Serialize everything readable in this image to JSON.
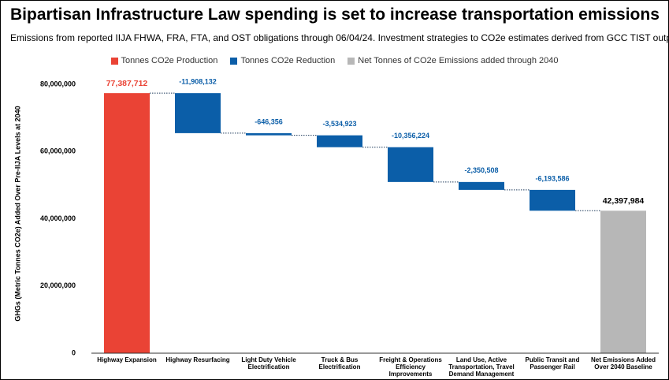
{
  "chart_data": {
    "type": "waterfall",
    "title": "Bipartisan Infrastructure Law spending is set to increase transportation emissions",
    "subtitle": "Emissions from reported IIJA FHWA, FRA, FTA, and OST obligations through 06/04/24. Investment strategies to CO2e estimates derived from GCC TIST output figures.",
    "y_label": "GHGs (Metric Tonnes CO2e) Added Over Pre-IIJA Levels at 2040",
    "categories": [
      "Highway Expansion",
      "Highway Resurfacing",
      "Light Duty Vehicle Electrification",
      "Truck & Bus Electrification",
      "Freight & Operations Efficiency Improvements",
      "Land Use, Active Transportation, Travel Demand Management",
      "Public Transit and Passenger Rail",
      "Net Emissions Added Over 2040 Baseline"
    ],
    "series": [
      {
        "name": "Tonnes CO2e Production",
        "color": "#ea4335",
        "values": [
          77387712,
          null,
          null,
          null,
          null,
          null,
          null,
          null
        ],
        "value_labels": [
          "77,387,712",
          null,
          null,
          null,
          null,
          null,
          null,
          null
        ]
      },
      {
        "name": "Tonnes CO2e Reduction",
        "color": "#0b5ea8",
        "values": [
          null,
          -11908132,
          -646356,
          -3534923,
          -10356224,
          -2350508,
          -6193586,
          null
        ],
        "value_labels": [
          null,
          "-11,908,132",
          "-646,356",
          "-3,534,923",
          "-10,356,224",
          "-2,350,508",
          "-6,193,586",
          null
        ]
      },
      {
        "name": "Net Tonnes of CO2e Emissions added through 2040",
        "color": "#b7b7b7",
        "values": [
          null,
          null,
          null,
          null,
          null,
          null,
          null,
          42397984
        ],
        "value_labels": [
          null,
          null,
          null,
          null,
          null,
          null,
          null,
          "42,397,984"
        ]
      }
    ],
    "ylim": [
      0,
      80000000
    ],
    "yticks": [
      0,
      {
        "value": 20000000,
        "label": "20,000,000"
      },
      {
        "value": 40000000,
        "label": "40,000,000"
      },
      {
        "value": 60000000,
        "label": "60,000,000"
      },
      {
        "value": 80000000,
        "label": "80,000,000"
      }
    ]
  }
}
